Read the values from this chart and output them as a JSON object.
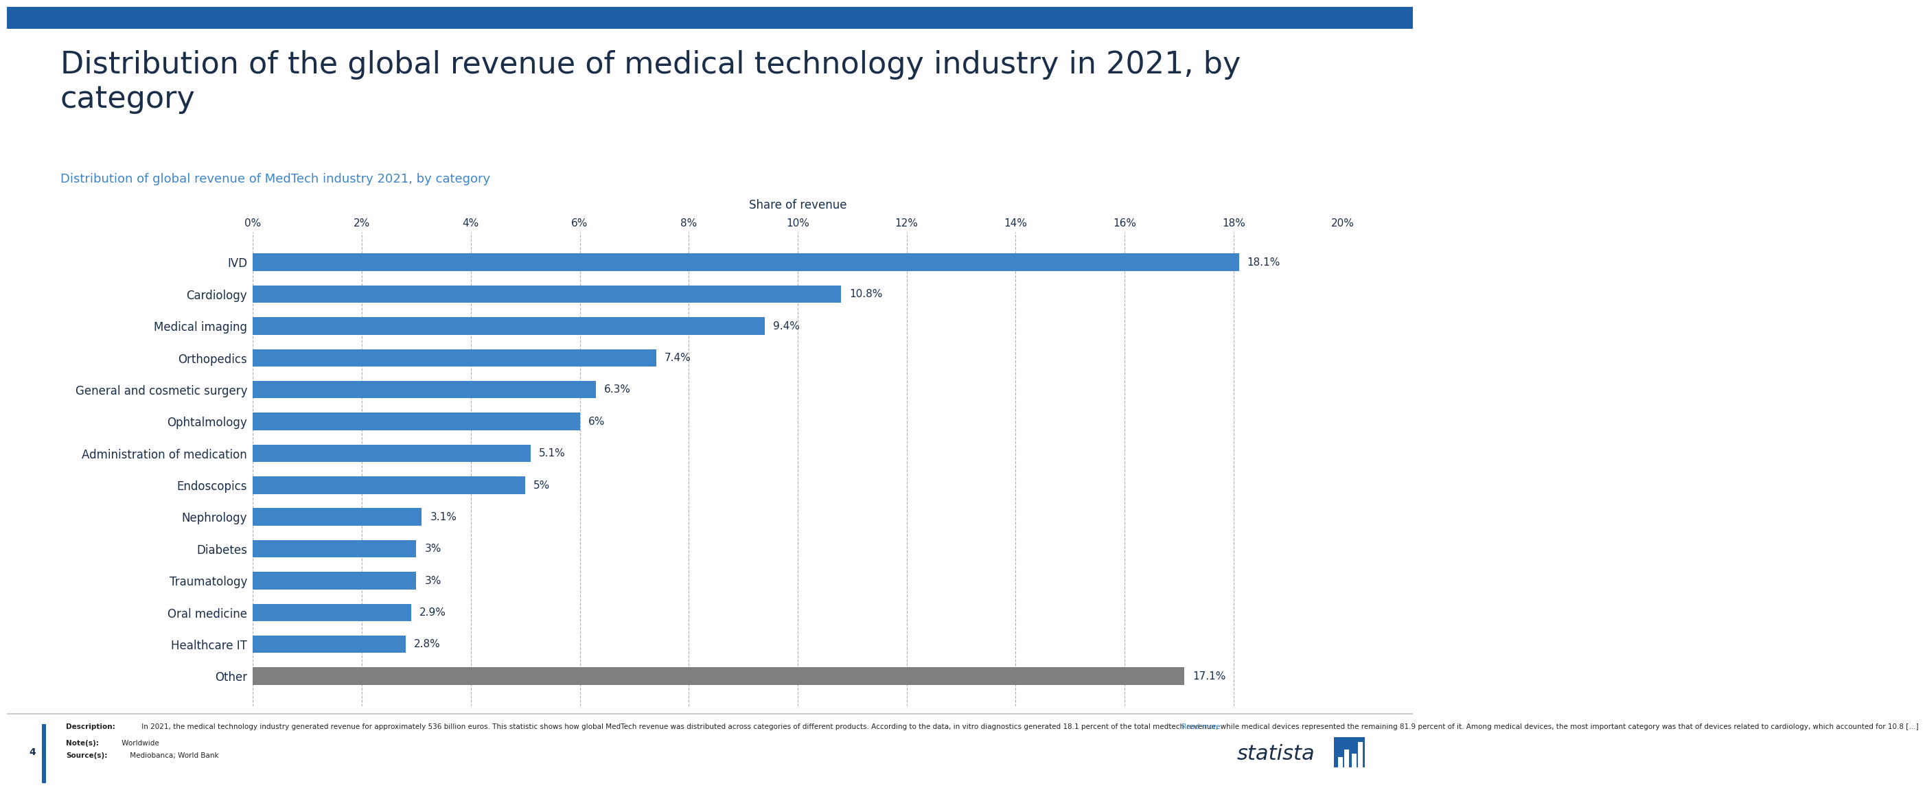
{
  "title": "Distribution of the global revenue of medical technology industry in 2021, by\ncategory",
  "subtitle": "Distribution of global revenue of MedTech industry 2021, by category",
  "xlabel": "Share of revenue",
  "categories": [
    "IVD",
    "Cardiology",
    "Medical imaging",
    "Orthopedics",
    "General and cosmetic surgery",
    "Ophtalmology",
    "Administration of medication",
    "Endoscopics",
    "Nephrology",
    "Diabetes",
    "Traumatology",
    "Oral medicine",
    "Healthcare IT",
    "Other"
  ],
  "values": [
    18.1,
    10.8,
    9.4,
    7.4,
    6.3,
    6.0,
    5.1,
    5.0,
    3.1,
    3.0,
    3.0,
    2.9,
    2.8,
    17.1
  ],
  "bar_colors": [
    "#3d85c8",
    "#3d85c8",
    "#3d85c8",
    "#3d85c8",
    "#3d85c8",
    "#3d85c8",
    "#3d85c8",
    "#3d85c8",
    "#3d85c8",
    "#3d85c8",
    "#3d85c8",
    "#3d85c8",
    "#3d85c8",
    "#7f7f7f"
  ],
  "value_labels": [
    "18.1%",
    "10.8%",
    "9.4%",
    "7.4%",
    "6.3%",
    "6%",
    "5.1%",
    "5%",
    "3.1%",
    "3%",
    "3%",
    "2.9%",
    "2.8%",
    "17.1%"
  ],
  "xlim": [
    0,
    20
  ],
  "xticks": [
    0,
    2,
    4,
    6,
    8,
    10,
    12,
    14,
    16,
    18,
    20
  ],
  "xtick_labels": [
    "0%",
    "2%",
    "4%",
    "6%",
    "8%",
    "10%",
    "12%",
    "14%",
    "16%",
    "18%",
    "20%"
  ],
  "title_color": "#1a2e4a",
  "subtitle_color": "#3d85c8",
  "title_fontsize": 32,
  "subtitle_fontsize": 13,
  "label_fontsize": 12,
  "value_fontsize": 11,
  "tick_fontsize": 11,
  "bg_color": "#ffffff",
  "top_bar_color": "#1e5fa8",
  "footer_desc_bold": "Description:",
  "footer_desc": " In 2021, the medical technology industry generated revenue for approximately 536 billion euros. This statistic shows how global MedTech revenue was distributed across categories of different products. According to the data, in vitro diagnostics generated 18.1 percent of the total medtech revenue, while medical devices represented the remaining 81.9 percent of it. Among medical devices, the most important category was that of devices related to cardiology, which accounted for 10.8 [...]",
  "footer_read_more": " Read more",
  "footer_notes_bold": "Note(s):",
  "footer_notes": " Worldwide",
  "footer_source_bold": "Source(s):",
  "footer_source": " Mediobanca; World Bank",
  "page_number": "4"
}
